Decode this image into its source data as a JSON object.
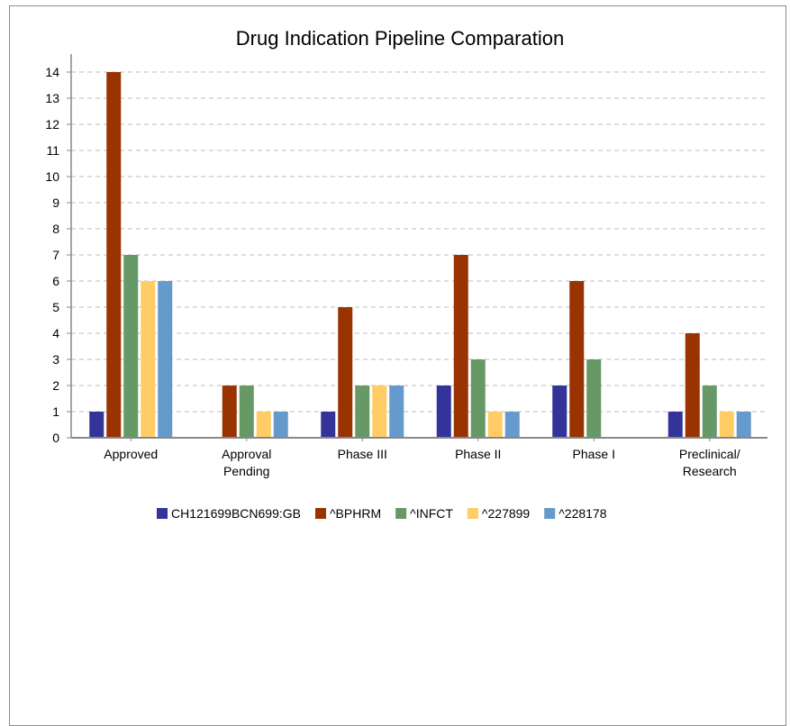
{
  "chart_data": {
    "type": "bar",
    "title": "Drug Indication Pipeline Comparation",
    "xlabel": "",
    "ylabel": "",
    "ylim": [
      0,
      14
    ],
    "yticks": [
      0,
      1,
      2,
      3,
      4,
      5,
      6,
      7,
      8,
      9,
      10,
      11,
      12,
      13,
      14
    ],
    "grid": true,
    "legend_position": "bottom",
    "categories": [
      [
        "Approved"
      ],
      [
        "Approval",
        "Pending"
      ],
      [
        "Phase III"
      ],
      [
        "Phase II"
      ],
      [
        "Phase I"
      ],
      [
        "Preclinical/",
        "Research"
      ]
    ],
    "series": [
      {
        "name": "CH121699BCN699:GB",
        "color": "#333399",
        "values": [
          1,
          0,
          1,
          2,
          2,
          1
        ]
      },
      {
        "name": "^BPHRM",
        "color": "#993300",
        "values": [
          14,
          2,
          5,
          7,
          6,
          4
        ]
      },
      {
        "name": "^INFCT",
        "color": "#669966",
        "values": [
          7,
          2,
          2,
          3,
          3,
          2
        ]
      },
      {
        "name": "^227899",
        "color": "#ffcc66",
        "values": [
          6,
          1,
          2,
          1,
          0,
          1
        ]
      },
      {
        "name": "^228178",
        "color": "#6699cc",
        "values": [
          6,
          1,
          2,
          1,
          0,
          1
        ]
      }
    ]
  }
}
